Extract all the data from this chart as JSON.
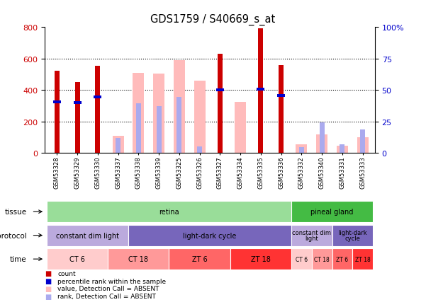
{
  "title": "GDS1759 / S40669_s_at",
  "samples": [
    "GSM53328",
    "GSM53329",
    "GSM53330",
    "GSM53337",
    "GSM53338",
    "GSM53339",
    "GSM53325",
    "GSM53326",
    "GSM53327",
    "GSM53334",
    "GSM53335",
    "GSM53336",
    "GSM53332",
    "GSM53340",
    "GSM53331",
    "GSM53333"
  ],
  "count_values": [
    520,
    450,
    555,
    0,
    0,
    0,
    0,
    0,
    630,
    0,
    790,
    560,
    0,
    0,
    0,
    0
  ],
  "percentile_values": [
    325,
    320,
    355,
    0,
    0,
    0,
    0,
    0,
    400,
    0,
    405,
    365,
    0,
    0,
    0,
    0
  ],
  "absent_value": [
    0,
    0,
    0,
    110,
    510,
    505,
    590,
    460,
    0,
    325,
    0,
    0,
    55,
    115,
    45,
    100
  ],
  "absent_rank": [
    0,
    0,
    0,
    95,
    315,
    295,
    355,
    40,
    0,
    0,
    0,
    0,
    35,
    195,
    55,
    150
  ],
  "ylim_left": [
    0,
    800
  ],
  "ylim_right": [
    0,
    100
  ],
  "yticks_left": [
    0,
    200,
    400,
    600,
    800
  ],
  "yticks_right": [
    0,
    25,
    50,
    75,
    100
  ],
  "tissue_groups": [
    {
      "label": "retina",
      "start": 0,
      "end": 12,
      "color": "#99DD99"
    },
    {
      "label": "pineal gland",
      "start": 12,
      "end": 16,
      "color": "#44BB44"
    }
  ],
  "protocol_groups": [
    {
      "label": "constant dim light",
      "start": 0,
      "end": 4,
      "color": "#BBAADD"
    },
    {
      "label": "light-dark cycle",
      "start": 4,
      "end": 12,
      "color": "#7766BB"
    },
    {
      "label": "constant dim\nlight",
      "start": 12,
      "end": 14,
      "color": "#BBAADD"
    },
    {
      "label": "light-dark\ncycle",
      "start": 14,
      "end": 16,
      "color": "#7766BB"
    }
  ],
  "time_groups": [
    {
      "label": "CT 6",
      "start": 0,
      "end": 3,
      "color": "#FFCCCC"
    },
    {
      "label": "CT 18",
      "start": 3,
      "end": 6,
      "color": "#FF9999"
    },
    {
      "label": "ZT 6",
      "start": 6,
      "end": 9,
      "color": "#FF6666"
    },
    {
      "label": "ZT 18",
      "start": 9,
      "end": 12,
      "color": "#FF3333"
    },
    {
      "label": "CT 6",
      "start": 12,
      "end": 13,
      "color": "#FFCCCC"
    },
    {
      "label": "CT 18",
      "start": 13,
      "end": 14,
      "color": "#FF9999"
    },
    {
      "label": "ZT 6",
      "start": 14,
      "end": 15,
      "color": "#FF6666"
    },
    {
      "label": "ZT 18",
      "start": 15,
      "end": 16,
      "color": "#FF3333"
    }
  ],
  "count_color": "#CC0000",
  "percentile_color": "#0000CC",
  "absent_value_color": "#FFBBBB",
  "absent_rank_color": "#AAAAEE",
  "bg_color": "#FFFFFF",
  "left_label_color": "#CC0000",
  "right_label_color": "#0000CC",
  "row_labels": [
    "tissue",
    "protocol",
    "time"
  ],
  "legend_items": [
    {
      "color": "#CC0000",
      "label": "count"
    },
    {
      "color": "#0000CC",
      "label": "percentile rank within the sample"
    },
    {
      "color": "#FFBBBB",
      "label": "value, Detection Call = ABSENT"
    },
    {
      "color": "#AAAAEE",
      "label": "rank, Detection Call = ABSENT"
    }
  ]
}
